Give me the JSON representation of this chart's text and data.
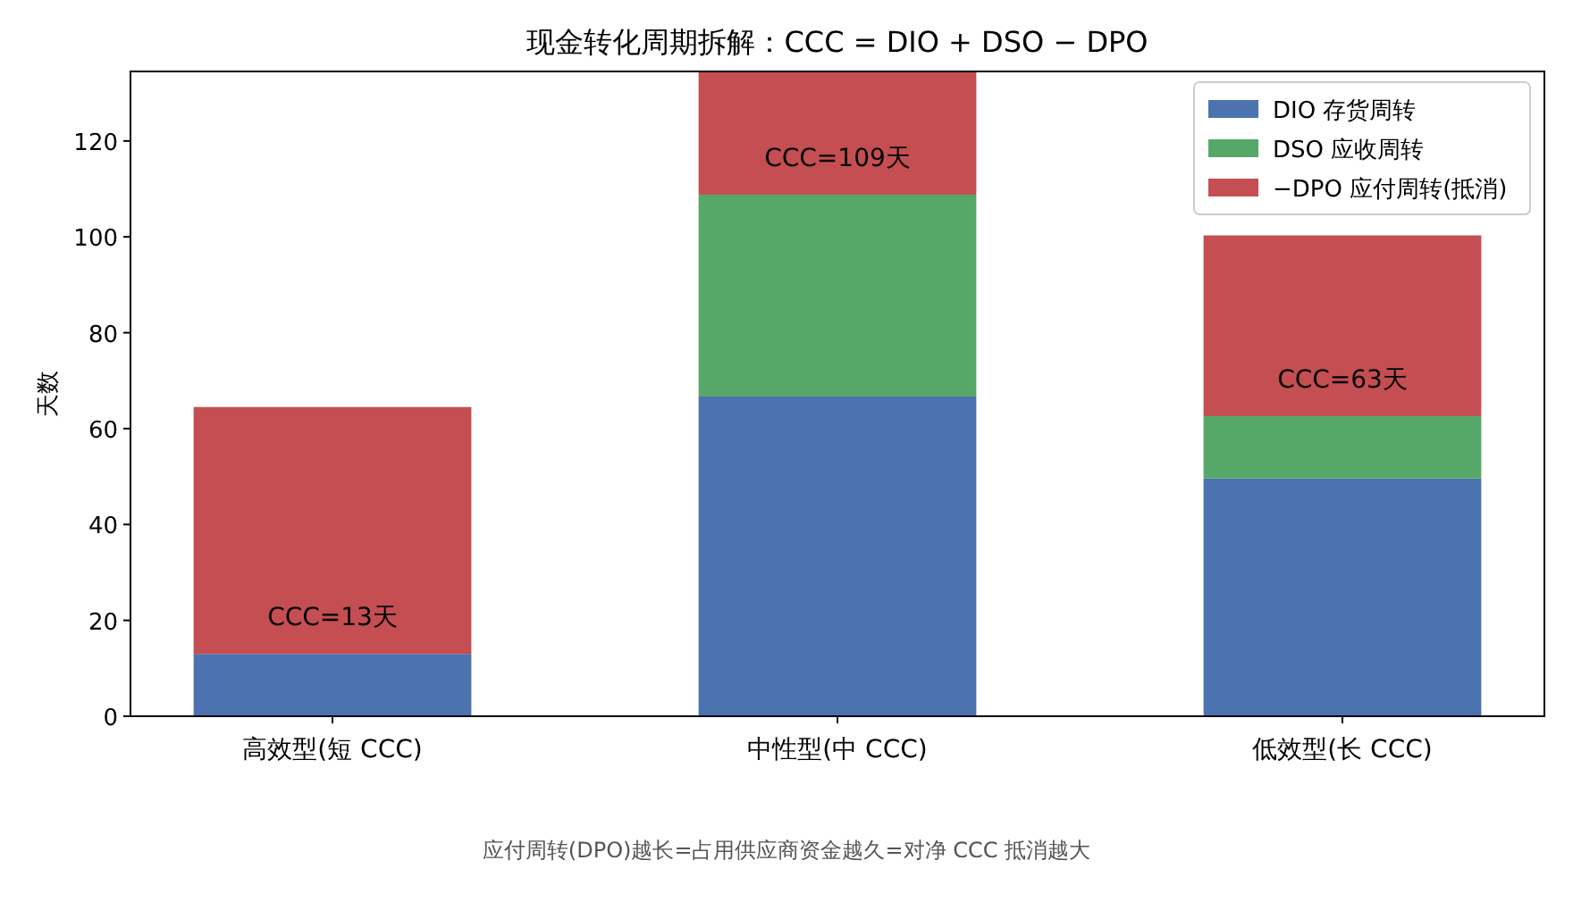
{
  "chart_data": {
    "type": "bar",
    "stacked": true,
    "title": "现金转化周期拆解：CCC = DIO + DSO − DPO",
    "ylabel": "天数",
    "categories": [
      "高效型(短 CCC)",
      "中性型(中 CCC)",
      "低效型(长 CCC)"
    ],
    "series": [
      {
        "name": "DIO 存货周转",
        "color": "#4c72b0",
        "values": [
          13,
          66.7,
          49.6
        ]
      },
      {
        "name": "DSO 应收周转",
        "color": "#55a868",
        "values": [
          0,
          42.1,
          13
        ]
      },
      {
        "name": "−DPO 应付周转(抵消)",
        "color": "#c44e52",
        "values": [
          51.5,
          25.7,
          37.7
        ]
      }
    ],
    "ylim": [
      0,
      134.5
    ],
    "yticks": [
      0,
      20,
      40,
      60,
      80,
      100,
      120
    ],
    "legend": "top right",
    "annotations": [
      "CCC=13天",
      "CCC=109天",
      "CCC=63天",
      "应付周转(DPO)越长=占用供应商资金越久=对净 CCC 抵消越大"
    ]
  }
}
